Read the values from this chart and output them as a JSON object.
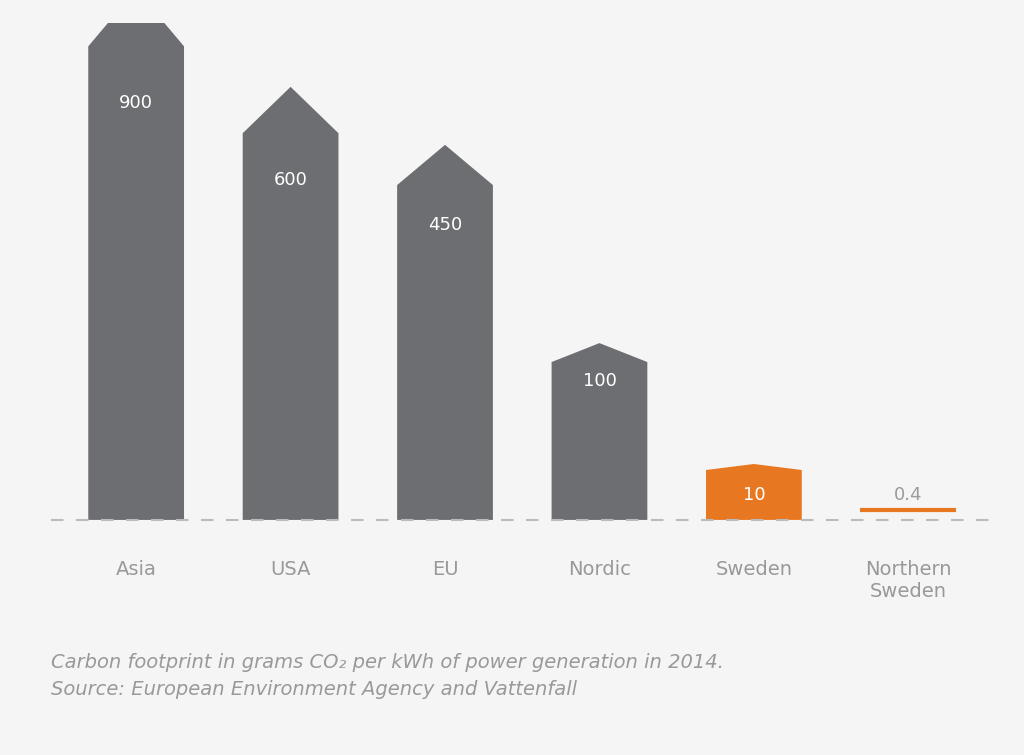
{
  "categories": [
    "Asia",
    "USA",
    "EU",
    "Nordic",
    "Sweden",
    "Northern\nSweden"
  ],
  "values": [
    900,
    600,
    450,
    100,
    10,
    0.4
  ],
  "bar_colors": [
    "#6d6e71",
    "#6d6e71",
    "#6d6e71",
    "#6d6e71",
    "#e87722",
    "#e87722"
  ],
  "labels": [
    "900",
    "600",
    "450",
    "100",
    "10",
    "0.4"
  ],
  "label_colors": [
    "#ffffff",
    "#ffffff",
    "#ffffff",
    "#ffffff",
    "#ffffff",
    "#9b9b9b"
  ],
  "background_color": "#f5f5f5",
  "dashed_line_color": "#bbbbbb",
  "caption_line1": "Carbon footprint in grams CO₂ per kWh of power generation in 2014.",
  "caption_line2": "Source: European Environment Agency and Vattenfall",
  "caption_color": "#999999",
  "caption_fontsize": 14,
  "tick_color": "#999999",
  "tick_fontsize": 14
}
